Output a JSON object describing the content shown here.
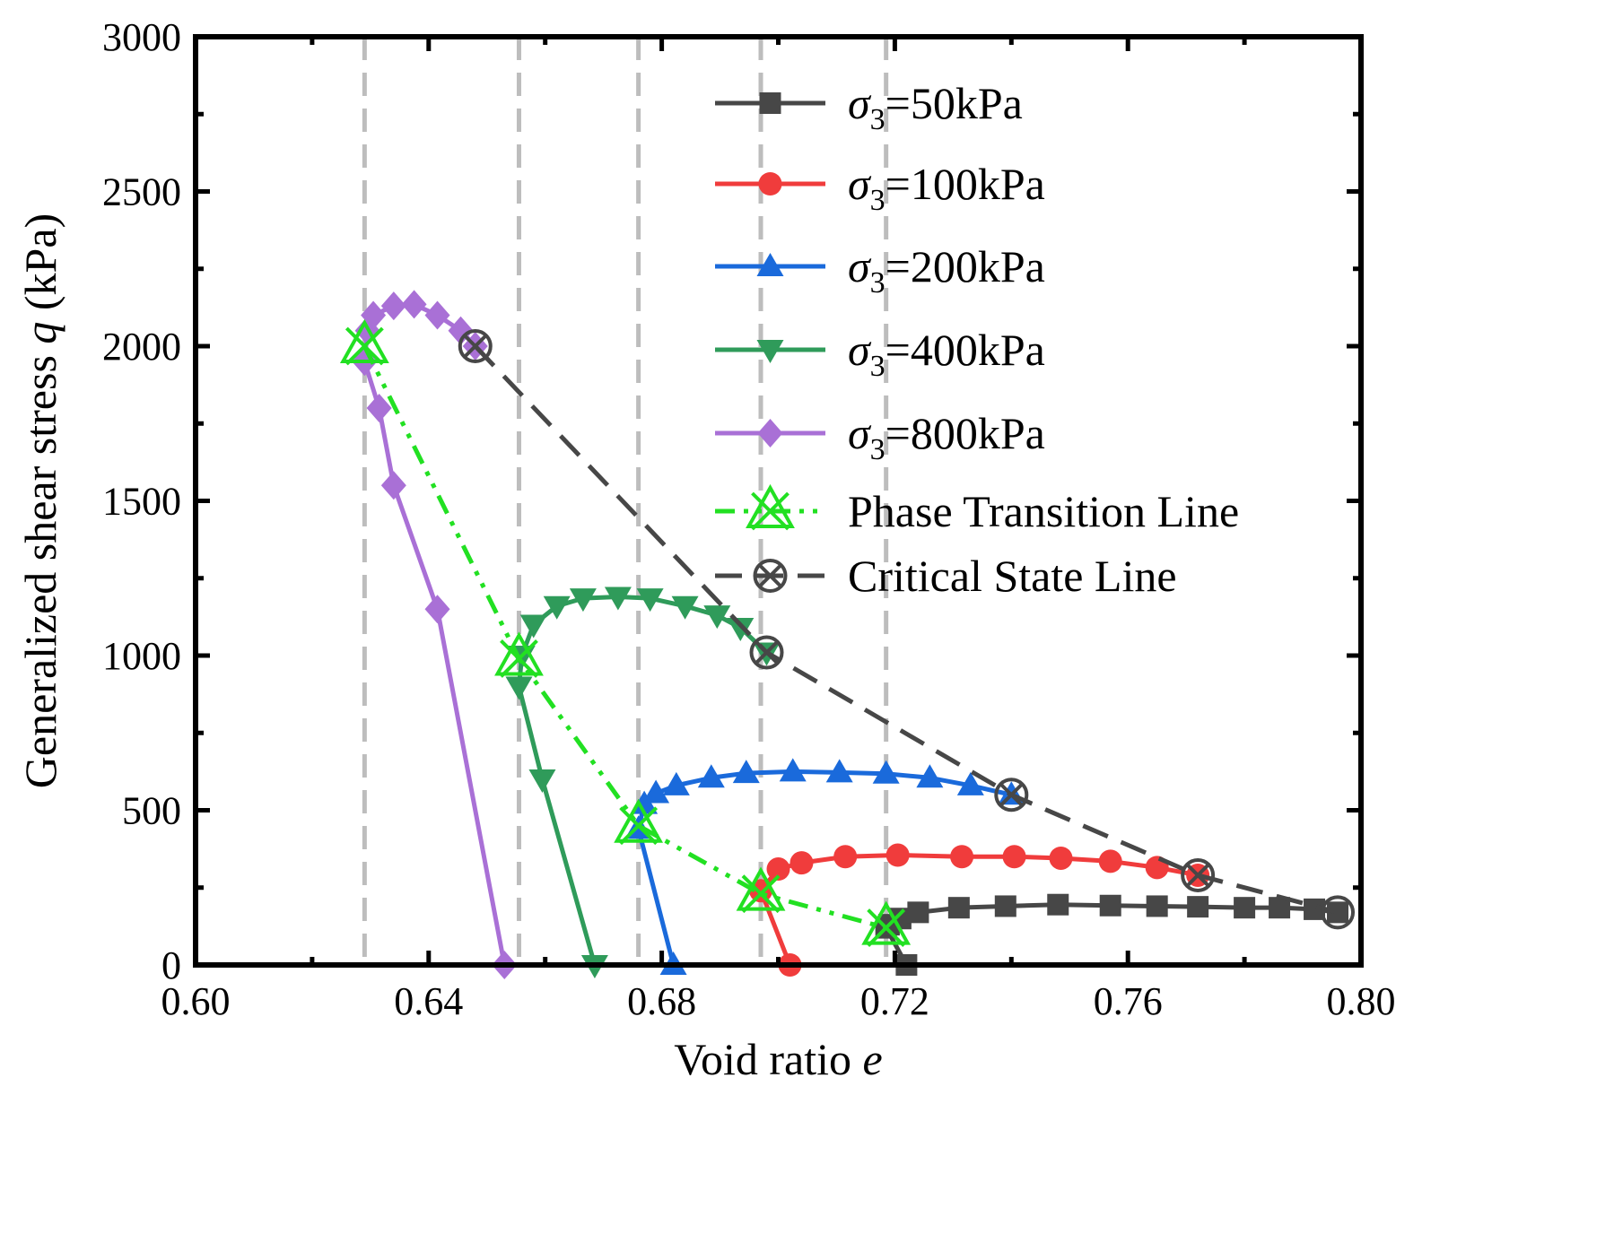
{
  "chart_data": {
    "type": "line",
    "xlabel": "Void ratio",
    "xlabel_symbol": "e",
    "ylabel": "Generalized shear stress",
    "ylabel_symbol": "q",
    "ylabel_unit": "(kPa)",
    "xlim": [
      0.6,
      0.8
    ],
    "ylim": [
      0,
      3000
    ],
    "xticks": [
      "0.60",
      "0.64",
      "0.68",
      "0.72",
      "0.76",
      "0.80"
    ],
    "xtick_values": [
      0.6,
      0.64,
      0.68,
      0.72,
      0.76,
      0.8
    ],
    "yticks": [
      "0",
      "500",
      "1000",
      "1500",
      "2000",
      "2500",
      "3000"
    ],
    "ytick_values": [
      0,
      500,
      1000,
      1500,
      2000,
      2500,
      3000
    ],
    "vlines": [
      0.629,
      0.6555,
      0.676,
      0.697,
      0.7185
    ],
    "legend_position": "top-right",
    "legend_prefix": "σ",
    "legend_sub": "3",
    "series": [
      {
        "name": "σ3=50kPa",
        "label_value": "=50kPa",
        "color": "#474747",
        "marker": "square",
        "x": [
          0.722,
          0.7185,
          0.719,
          0.721,
          0.724,
          0.731,
          0.739,
          0.748,
          0.757,
          0.765,
          0.772,
          0.78,
          0.786,
          0.792,
          0.796
        ],
        "y": [
          0,
          120,
          130,
          150,
          170,
          185,
          190,
          195,
          192,
          190,
          188,
          185,
          185,
          180,
          170
        ]
      },
      {
        "name": "σ3=100kPa",
        "label_value": "=100kPa",
        "color": "#f03c3c",
        "marker": "circle",
        "x": [
          0.702,
          0.697,
          0.7,
          0.704,
          0.7115,
          0.7205,
          0.7315,
          0.7405,
          0.7485,
          0.757,
          0.765,
          0.772
        ],
        "y": [
          0,
          240,
          310,
          330,
          350,
          355,
          350,
          350,
          345,
          335,
          315,
          290
        ]
      },
      {
        "name": "σ3=200kPa",
        "label_value": "=200kPa",
        "color": "#1a6adb",
        "marker": "triangle-up",
        "x": [
          0.682,
          0.676,
          0.677,
          0.679,
          0.6825,
          0.6885,
          0.6945,
          0.7025,
          0.7105,
          0.7185,
          0.726,
          0.733,
          0.74
        ],
        "y": [
          0,
          440,
          520,
          555,
          580,
          605,
          620,
          625,
          622,
          618,
          605,
          580,
          550
        ]
      },
      {
        "name": "σ3=400kPa",
        "label_value": "=400kPa",
        "color": "#2f9b5a",
        "marker": "triangle-down",
        "x": [
          0.6685,
          0.6595,
          0.6555,
          0.656,
          0.658,
          0.662,
          0.6665,
          0.6725,
          0.678,
          0.684,
          0.6895,
          0.6935,
          0.698
        ],
        "y": [
          0,
          600,
          900,
          1000,
          1100,
          1160,
          1185,
          1190,
          1185,
          1160,
          1130,
          1090,
          1010
        ]
      },
      {
        "name": "σ3=800kPa",
        "label_value": "=800kPa",
        "color": "#a970d6",
        "marker": "diamond",
        "x": [
          0.653,
          0.6415,
          0.634,
          0.6315,
          0.629,
          0.6295,
          0.6305,
          0.634,
          0.6375,
          0.6415,
          0.6455,
          0.648
        ],
        "y": [
          0,
          1150,
          1550,
          1800,
          1950,
          2050,
          2100,
          2130,
          2135,
          2100,
          2050,
          2000
        ]
      },
      {
        "name": "Phase Transition Line",
        "label_value": "Phase Transition Line",
        "color": "#22e022",
        "marker": "x-triangle",
        "x": [
          0.629,
          0.6555,
          0.676,
          0.697,
          0.7185
        ],
        "y": [
          2000,
          990,
          450,
          230,
          120
        ]
      },
      {
        "name": "Critical State Line",
        "label_value": "Critical State Line",
        "color": "#474747",
        "marker": "circle-x",
        "x": [
          0.648,
          0.698,
          0.74,
          0.772,
          0.796
        ],
        "y": [
          2000,
          1010,
          550,
          290,
          170
        ]
      }
    ]
  }
}
